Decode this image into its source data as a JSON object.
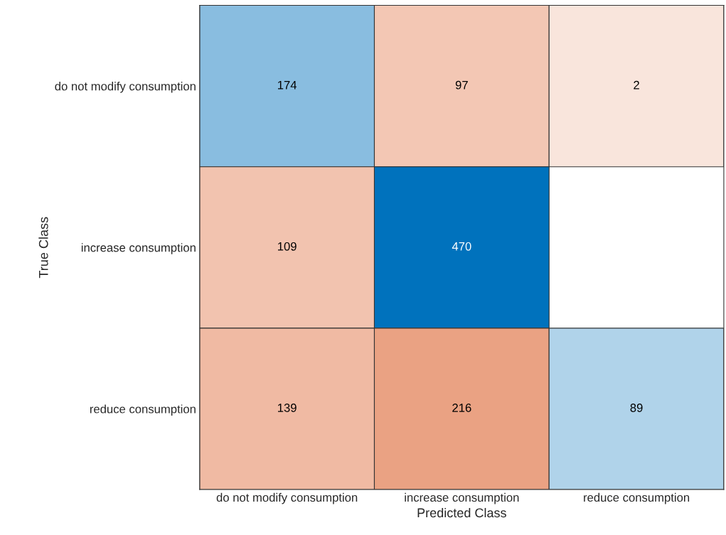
{
  "chart_data": {
    "type": "heatmap",
    "xlabel": "Predicted Class",
    "ylabel": "True Class",
    "categories": [
      "do not modify consumption",
      "increase consumption",
      "reduce consumption"
    ],
    "y_categories": [
      "do not modify consumption",
      "increase consumption",
      "reduce consumption"
    ],
    "cells": [
      [
        174,
        97,
        2
      ],
      [
        109,
        470,
        null
      ],
      [
        139,
        216,
        89
      ]
    ],
    "data_labels": true
  }
}
